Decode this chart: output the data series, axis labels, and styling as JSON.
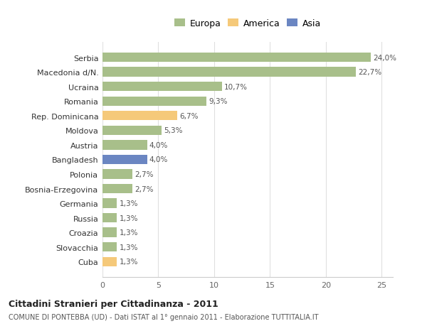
{
  "categories": [
    "Cuba",
    "Slovacchia",
    "Croazia",
    "Russia",
    "Germania",
    "Bosnia-Erzegovina",
    "Polonia",
    "Bangladesh",
    "Austria",
    "Moldova",
    "Rep. Dominicana",
    "Romania",
    "Ucraina",
    "Macedonia d/N.",
    "Serbia"
  ],
  "values": [
    1.3,
    1.3,
    1.3,
    1.3,
    1.3,
    2.7,
    2.7,
    4.0,
    4.0,
    5.3,
    6.7,
    9.3,
    10.7,
    22.7,
    24.0
  ],
  "labels": [
    "1,3%",
    "1,3%",
    "1,3%",
    "1,3%",
    "1,3%",
    "2,7%",
    "2,7%",
    "4,0%",
    "4,0%",
    "5,3%",
    "6,7%",
    "9,3%",
    "10,7%",
    "22,7%",
    "24,0%"
  ],
  "colors": [
    "#f5c97a",
    "#a8bf8a",
    "#a8bf8a",
    "#a8bf8a",
    "#a8bf8a",
    "#a8bf8a",
    "#a8bf8a",
    "#6b86c2",
    "#a8bf8a",
    "#a8bf8a",
    "#f5c97a",
    "#a8bf8a",
    "#a8bf8a",
    "#a8bf8a",
    "#a8bf8a"
  ],
  "legend_labels": [
    "Europa",
    "America",
    "Asia"
  ],
  "legend_colors": [
    "#a8bf8a",
    "#f5c97a",
    "#6b86c2"
  ],
  "title": "Cittadini Stranieri per Cittadinanza - 2011",
  "subtitle": "COMUNE DI PONTEBBA (UD) - Dati ISTAT al 1° gennaio 2011 - Elaborazione TUTTITALIA.IT",
  "xlim": [
    0,
    26
  ],
  "xticks": [
    0,
    5,
    10,
    15,
    20,
    25
  ],
  "background_color": "#ffffff",
  "bar_height": 0.65,
  "grid_color": "#e0e0e0"
}
